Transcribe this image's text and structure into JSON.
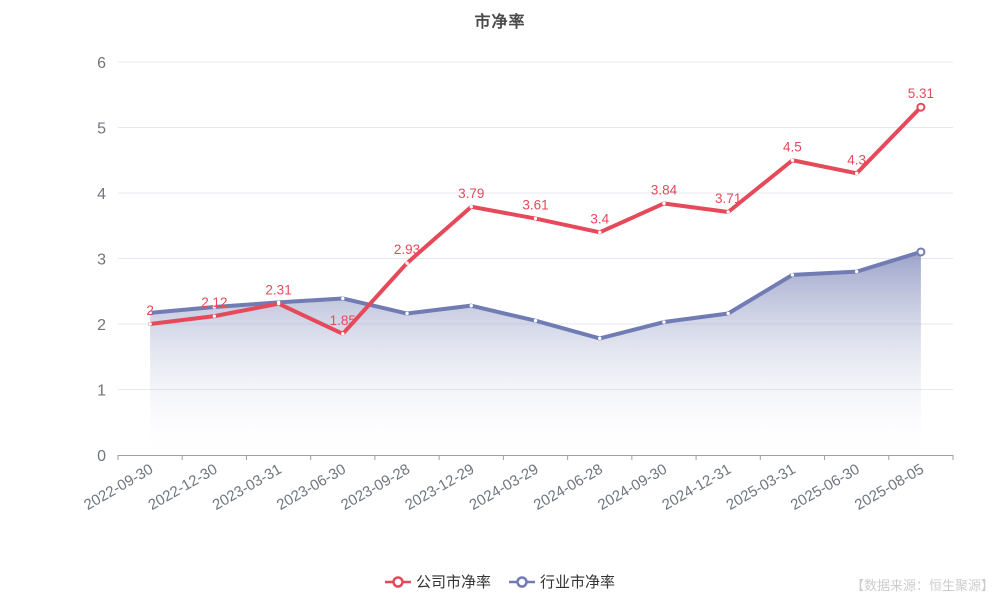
{
  "title": "市净率",
  "source_note": "【数据来源：恒生聚源】",
  "legend": {
    "items": [
      "公司市净率",
      "行业市净率"
    ]
  },
  "colors": {
    "grid": "#e4e8f2",
    "axis": "#9aa0ab",
    "tick_label": "#70757e",
    "title": "#4a4a4a",
    "legend_text": "#333333",
    "source": "#cccccc",
    "marker_fill": "#ffffff"
  },
  "chart_data": {
    "type": "line",
    "title": "市净率",
    "xlabel": "",
    "ylabel": "",
    "ylim": [
      0,
      6
    ],
    "yticks": [
      0,
      1,
      2,
      3,
      4,
      5,
      6
    ],
    "grid": true,
    "legend_position": "bottom",
    "x_label_rotation": -30,
    "categories": [
      "2022-09-30",
      "2022-12-30",
      "2023-03-31",
      "2023-06-30",
      "2023-09-28",
      "2023-12-29",
      "2024-03-29",
      "2024-06-28",
      "2024-09-30",
      "2024-12-31",
      "2025-03-31",
      "2025-06-30",
      "2025-08-05"
    ],
    "series": [
      {
        "name": "行业市净率",
        "color": "#717cb4",
        "show_labels": false,
        "area": true,
        "area_gradient": [
          "rgba(113,124,178,0.70)",
          "rgba(255,255,255,0.04)"
        ],
        "values": [
          2.17,
          2.26,
          2.33,
          2.39,
          2.16,
          2.28,
          2.05,
          1.78,
          2.03,
          2.16,
          2.75,
          2.8,
          3.1
        ]
      },
      {
        "name": "公司市净率",
        "color": "#e6495a",
        "show_labels": true,
        "area": false,
        "values": [
          2,
          2.12,
          2.31,
          1.85,
          2.93,
          3.79,
          3.61,
          3.4,
          3.84,
          3.71,
          4.5,
          4.3,
          5.31
        ]
      }
    ]
  }
}
